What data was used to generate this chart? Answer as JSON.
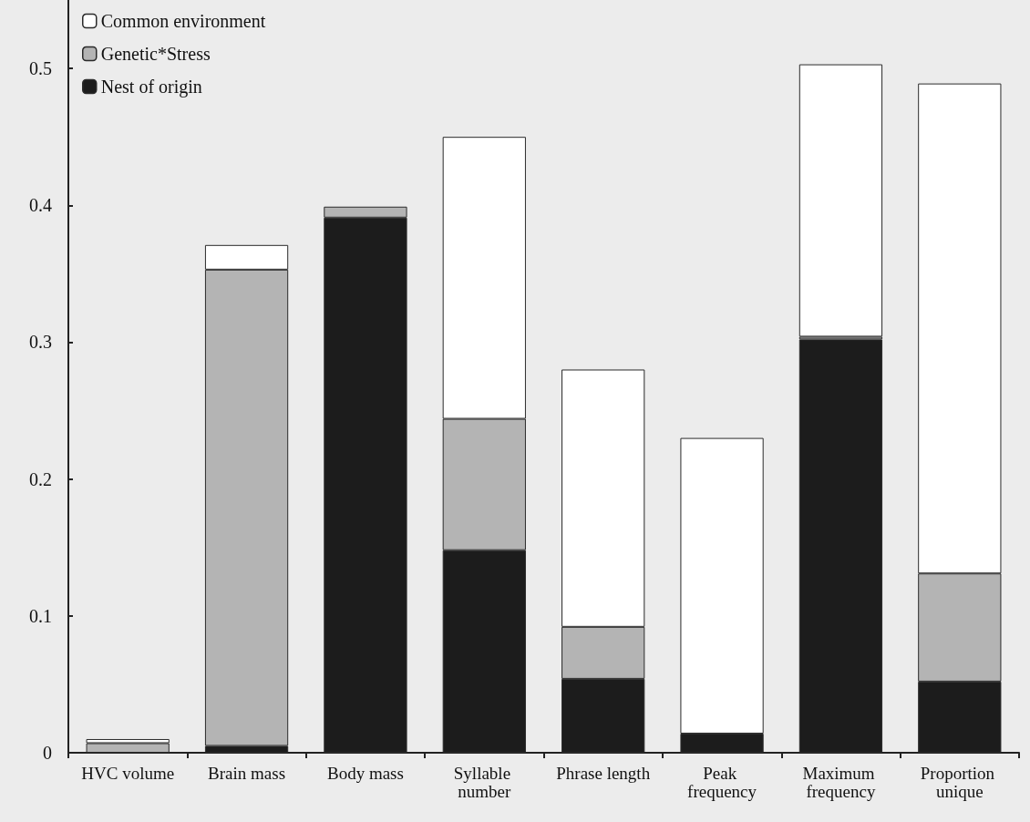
{
  "chart_data": {
    "type": "bar",
    "stacked": true,
    "categories": [
      "HVC volume",
      "Brain mass",
      "Body mass",
      "Syllable number",
      "Phrase length",
      "Peak frequency",
      "Maximum frequency",
      "Proportion unique"
    ],
    "series": [
      {
        "name": "Nest of origin",
        "color": "#1c1c1c",
        "values": [
          null,
          0.005,
          0.391,
          0.148,
          0.054,
          0.014,
          0.302,
          0.052
        ]
      },
      {
        "name": "Genetic*Stress",
        "color": "#b4b4b4",
        "values": [
          0.007,
          0.348,
          0.008,
          0.096,
          0.038,
          null,
          0.002,
          0.079
        ]
      },
      {
        "name": "Common environment",
        "color": "#ffffff",
        "values": [
          0.003,
          0.018,
          null,
          0.206,
          0.188,
          0.216,
          0.199,
          0.358
        ]
      }
    ],
    "ylim": [
      0,
      0.55
    ],
    "yticks": [
      0,
      0.1,
      0.2,
      0.3,
      0.4,
      0.5
    ],
    "grid": false,
    "legend": "top left"
  }
}
